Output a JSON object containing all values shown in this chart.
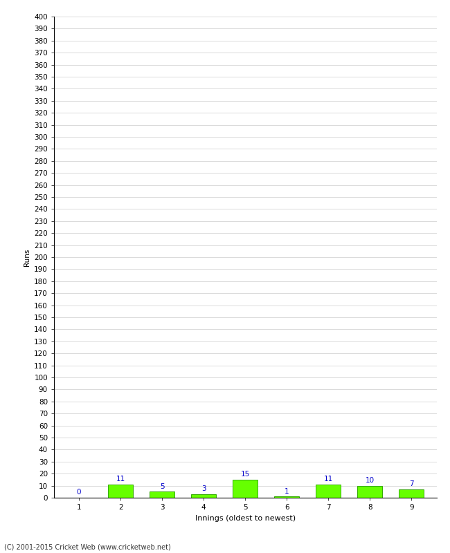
{
  "categories": [
    "1",
    "2",
    "3",
    "4",
    "5",
    "6",
    "7",
    "8",
    "9"
  ],
  "values": [
    0,
    11,
    5,
    3,
    15,
    1,
    11,
    10,
    7
  ],
  "bar_color": "#66ff00",
  "bar_edge_color": "#33aa00",
  "label_color": "#0000cc",
  "xlabel": "Innings (oldest to newest)",
  "ylabel": "Runs",
  "ylim_max": 400,
  "background_color": "#ffffff",
  "grid_color": "#cccccc",
  "footer_text": "(C) 2001-2015 Cricket Web (www.cricketweb.net)",
  "label_fontsize": 7.5,
  "axis_tick_fontsize": 7.5,
  "ylabel_fontsize": 7.5,
  "xlabel_fontsize": 8
}
